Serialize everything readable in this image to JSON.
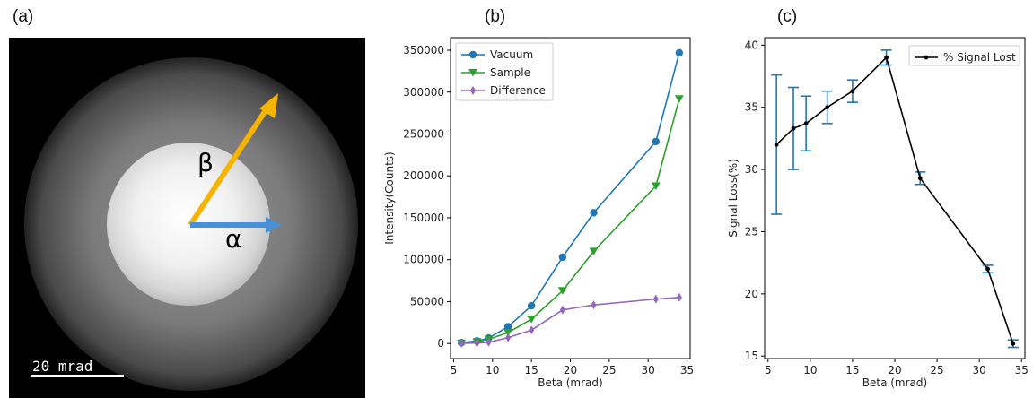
{
  "labels": {
    "a": "(a)",
    "b": "(b)",
    "c": "(c)"
  },
  "image_panel": {
    "beta_symbol": "β",
    "alpha_symbol": "α",
    "scale_bar_label": "20 mrad",
    "colors": {
      "beta_arrow": "#f5b400",
      "alpha_arrow": "#4a90d9"
    }
  },
  "chart_data": [
    {
      "type": "line",
      "xlabel": "Beta (mrad)",
      "ylabel": "Intensity(Counts)",
      "xlim": [
        4.6,
        35.4
      ],
      "ylim": [
        -18000,
        365000
      ],
      "xticks": [
        5,
        10,
        15,
        20,
        25,
        30,
        35
      ],
      "yticks": [
        0,
        50000,
        100000,
        150000,
        200000,
        250000,
        300000,
        350000
      ],
      "legend_position": "top-left",
      "grid": false,
      "x": [
        6,
        8,
        9.5,
        12,
        15,
        19,
        23,
        31,
        34
      ],
      "series": [
        {
          "name": "Vacuum",
          "marker": "circle",
          "color": "#1f77b4",
          "values": [
            1000,
            3000,
            6500,
            20000,
            45000,
            103000,
            156000,
            241000,
            347000
          ]
        },
        {
          "name": "Sample",
          "marker": "triangle-down",
          "color": "#2ca02c",
          "values": [
            500,
            2000,
            5000,
            13000,
            29000,
            63000,
            110000,
            188000,
            292000
          ]
        },
        {
          "name": "Difference",
          "marker": "diamond",
          "color": "#9467bd",
          "values": [
            200,
            500,
            1500,
            7000,
            16000,
            40000,
            46000,
            53000,
            55000
          ]
        }
      ]
    },
    {
      "type": "line",
      "xlabel": "Beta (mrad)",
      "ylabel": "Signal Loss(%)",
      "xlim": [
        4.6,
        35.4
      ],
      "ylim": [
        14.8,
        40.6
      ],
      "xticks": [
        5,
        10,
        15,
        20,
        25,
        30,
        35
      ],
      "yticks": [
        15,
        20,
        25,
        30,
        35,
        40
      ],
      "legend_position": "top-right",
      "grid": false,
      "x": [
        6,
        8,
        9.5,
        12,
        15,
        19,
        23,
        31,
        34
      ],
      "series": [
        {
          "name": "% Signal Lost",
          "marker": "point",
          "color": "#000000",
          "error_color": "#1f77b4",
          "values": [
            32.0,
            33.3,
            33.7,
            35.0,
            36.3,
            39.0,
            29.3,
            22.0,
            16.0
          ],
          "errors": [
            5.6,
            3.3,
            2.2,
            1.3,
            0.9,
            0.6,
            0.5,
            0.3,
            0.3
          ]
        }
      ]
    }
  ]
}
